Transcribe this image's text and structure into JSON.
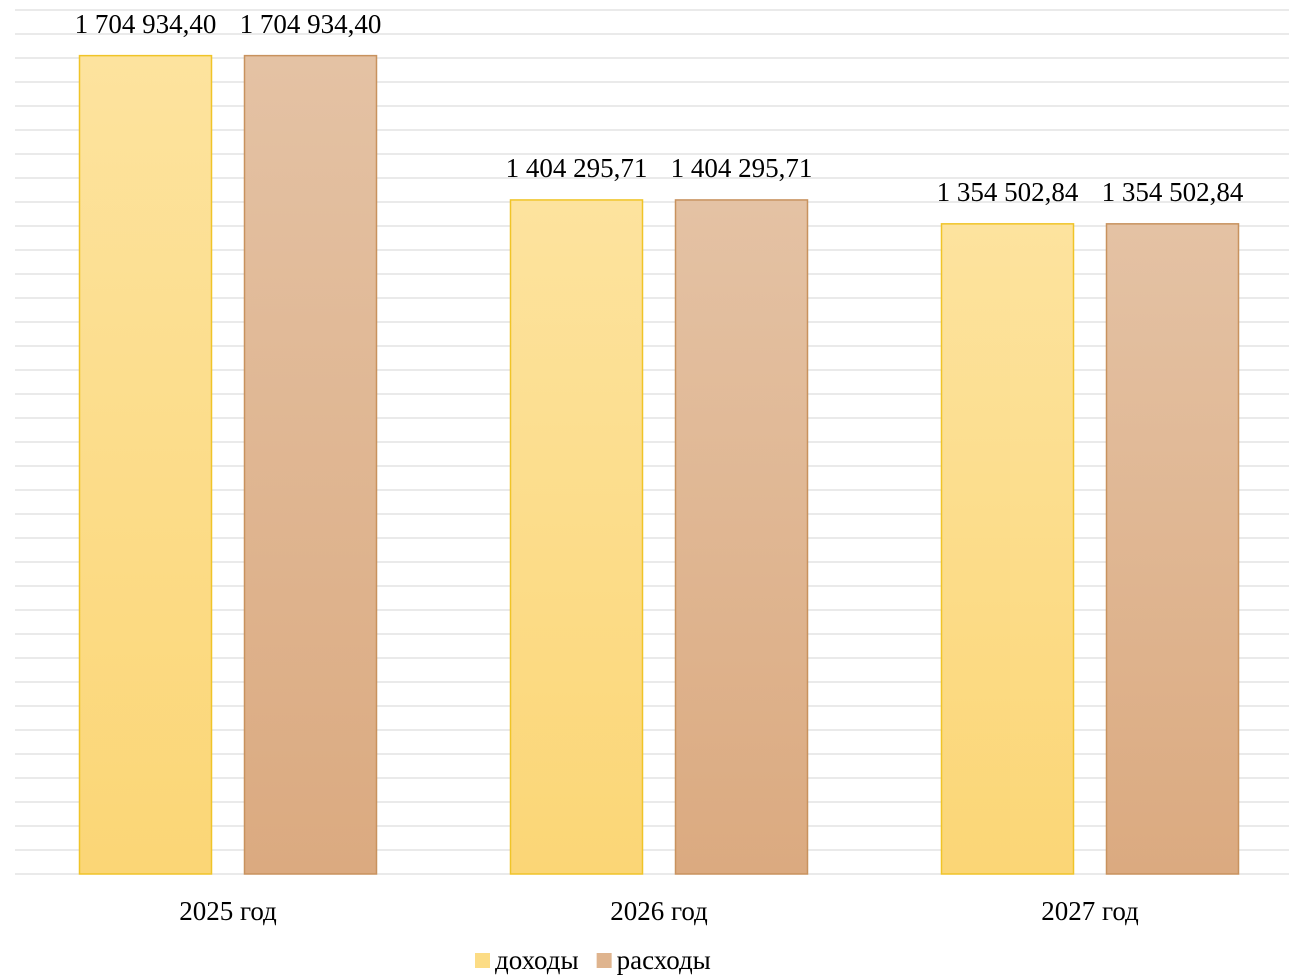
{
  "chart_data": {
    "type": "bar",
    "categories": [
      "2025 год",
      "2026 год",
      "2027 год"
    ],
    "series": [
      {
        "name": "доходы",
        "color": "#fcdc85",
        "values": [
          1704934.4,
          1404295.71,
          1354502.84
        ],
        "value_labels": [
          "1 704 934,40",
          "1 404 295,71",
          "1 354 502,84"
        ]
      },
      {
        "name": "расходы",
        "color": "#dfb48e",
        "values": [
          1704934.4,
          1404295.71,
          1354502.84
        ],
        "value_labels": [
          "1 704 934,40",
          "1 404 295,71",
          "1 354 502,84"
        ]
      }
    ],
    "ylim": [
      0,
      1800000
    ],
    "yticks": [
      0,
      50000,
      100000,
      150000,
      200000,
      250000,
      300000,
      350000,
      400000,
      450000,
      500000,
      550000,
      600000,
      650000,
      700000,
      750000,
      800000,
      850000,
      900000,
      950000,
      1000000,
      1050000,
      1100000,
      1150000,
      1200000,
      1250000,
      1300000,
      1350000,
      1400000,
      1450000,
      1500000,
      1550000,
      1600000,
      1650000,
      1700000,
      1750000,
      1800000
    ],
    "grid": true,
    "legend": "bottom"
  }
}
